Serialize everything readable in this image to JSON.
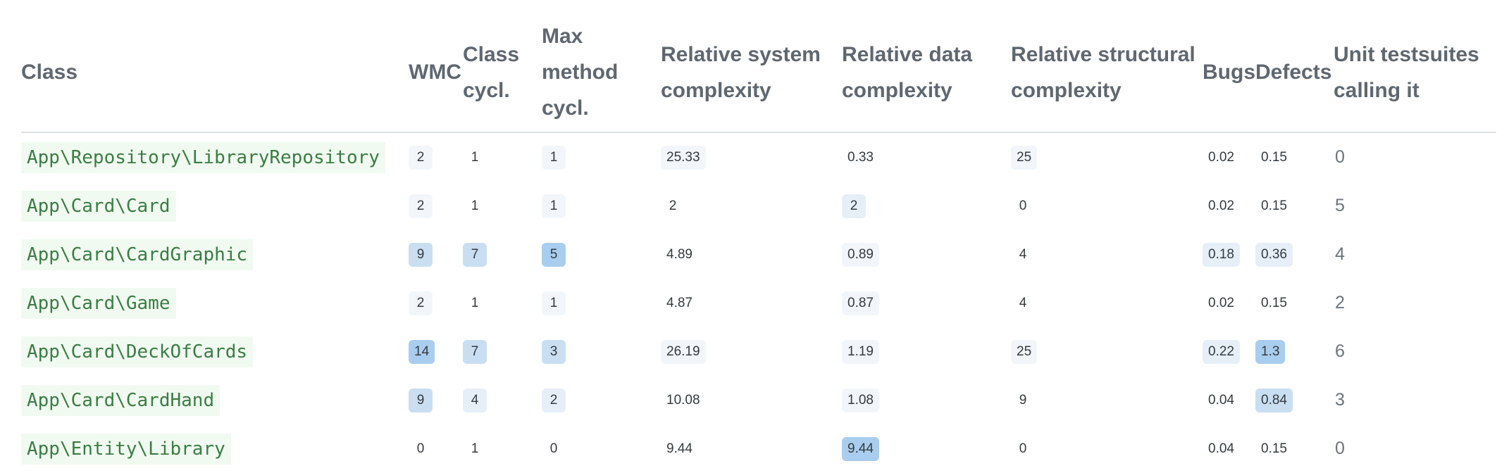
{
  "headers": {
    "class": "Class",
    "wmc": "WMC",
    "class_cycl": "Class cycl.",
    "max_method_cycl": "Max method cycl.",
    "rel_system": "Relative system complexity",
    "rel_data": "Relative data complexity",
    "rel_structural": "Relative structural complexity",
    "bugs": "Bugs",
    "defects": "Defects",
    "unit_tests": "Unit testsuites calling it"
  },
  "heat_colors": {
    "none": "transparent",
    "low": "#f2f6fb",
    "medium": "#e6eff8",
    "high": "#c9def1",
    "max": "#a9cdee"
  },
  "rows": [
    {
      "class": "App\\Repository\\LibraryRepository",
      "wmc": {
        "v": "2",
        "heat": "low"
      },
      "class_cycl": {
        "v": "1",
        "heat": "none"
      },
      "max_method_cycl": {
        "v": "1",
        "heat": "low"
      },
      "rel_system": {
        "v": "25.33",
        "heat": "low"
      },
      "rel_data": {
        "v": "0.33",
        "heat": "none"
      },
      "rel_structural": {
        "v": "25",
        "heat": "low"
      },
      "bugs": {
        "v": "0.02",
        "heat": "none"
      },
      "defects": {
        "v": "0.15",
        "heat": "none"
      },
      "unit_tests": "0"
    },
    {
      "class": "App\\Card\\Card",
      "wmc": {
        "v": "2",
        "heat": "low"
      },
      "class_cycl": {
        "v": "1",
        "heat": "none"
      },
      "max_method_cycl": {
        "v": "1",
        "heat": "low"
      },
      "rel_system": {
        "v": "2",
        "heat": "none"
      },
      "rel_data": {
        "v": "2",
        "heat": "medium"
      },
      "rel_structural": {
        "v": "0",
        "heat": "none"
      },
      "bugs": {
        "v": "0.02",
        "heat": "none"
      },
      "defects": {
        "v": "0.15",
        "heat": "none"
      },
      "unit_tests": "5"
    },
    {
      "class": "App\\Card\\CardGraphic",
      "wmc": {
        "v": "9",
        "heat": "high"
      },
      "class_cycl": {
        "v": "7",
        "heat": "high"
      },
      "max_method_cycl": {
        "v": "5",
        "heat": "max"
      },
      "rel_system": {
        "v": "4.89",
        "heat": "none"
      },
      "rel_data": {
        "v": "0.89",
        "heat": "low"
      },
      "rel_structural": {
        "v": "4",
        "heat": "none"
      },
      "bugs": {
        "v": "0.18",
        "heat": "medium"
      },
      "defects": {
        "v": "0.36",
        "heat": "medium"
      },
      "unit_tests": "4"
    },
    {
      "class": "App\\Card\\Game",
      "wmc": {
        "v": "2",
        "heat": "low"
      },
      "class_cycl": {
        "v": "1",
        "heat": "none"
      },
      "max_method_cycl": {
        "v": "1",
        "heat": "low"
      },
      "rel_system": {
        "v": "4.87",
        "heat": "none"
      },
      "rel_data": {
        "v": "0.87",
        "heat": "low"
      },
      "rel_structural": {
        "v": "4",
        "heat": "none"
      },
      "bugs": {
        "v": "0.02",
        "heat": "none"
      },
      "defects": {
        "v": "0.15",
        "heat": "none"
      },
      "unit_tests": "2"
    },
    {
      "class": "App\\Card\\DeckOfCards",
      "wmc": {
        "v": "14",
        "heat": "max"
      },
      "class_cycl": {
        "v": "7",
        "heat": "high"
      },
      "max_method_cycl": {
        "v": "3",
        "heat": "high"
      },
      "rel_system": {
        "v": "26.19",
        "heat": "low"
      },
      "rel_data": {
        "v": "1.19",
        "heat": "low"
      },
      "rel_structural": {
        "v": "25",
        "heat": "low"
      },
      "bugs": {
        "v": "0.22",
        "heat": "medium"
      },
      "defects": {
        "v": "1.3",
        "heat": "max"
      },
      "unit_tests": "6"
    },
    {
      "class": "App\\Card\\CardHand",
      "wmc": {
        "v": "9",
        "heat": "high"
      },
      "class_cycl": {
        "v": "4",
        "heat": "medium"
      },
      "max_method_cycl": {
        "v": "2",
        "heat": "medium"
      },
      "rel_system": {
        "v": "10.08",
        "heat": "none"
      },
      "rel_data": {
        "v": "1.08",
        "heat": "low"
      },
      "rel_structural": {
        "v": "9",
        "heat": "none"
      },
      "bugs": {
        "v": "0.04",
        "heat": "none"
      },
      "defects": {
        "v": "0.84",
        "heat": "high"
      },
      "unit_tests": "3"
    },
    {
      "class": "App\\Entity\\Library",
      "wmc": {
        "v": "0",
        "heat": "none"
      },
      "class_cycl": {
        "v": "1",
        "heat": "none"
      },
      "max_method_cycl": {
        "v": "0",
        "heat": "none"
      },
      "rel_system": {
        "v": "9.44",
        "heat": "none"
      },
      "rel_data": {
        "v": "9.44",
        "heat": "max"
      },
      "rel_structural": {
        "v": "0",
        "heat": "none"
      },
      "bugs": {
        "v": "0.04",
        "heat": "none"
      },
      "defects": {
        "v": "0.15",
        "heat": "none"
      },
      "unit_tests": "0"
    }
  ]
}
